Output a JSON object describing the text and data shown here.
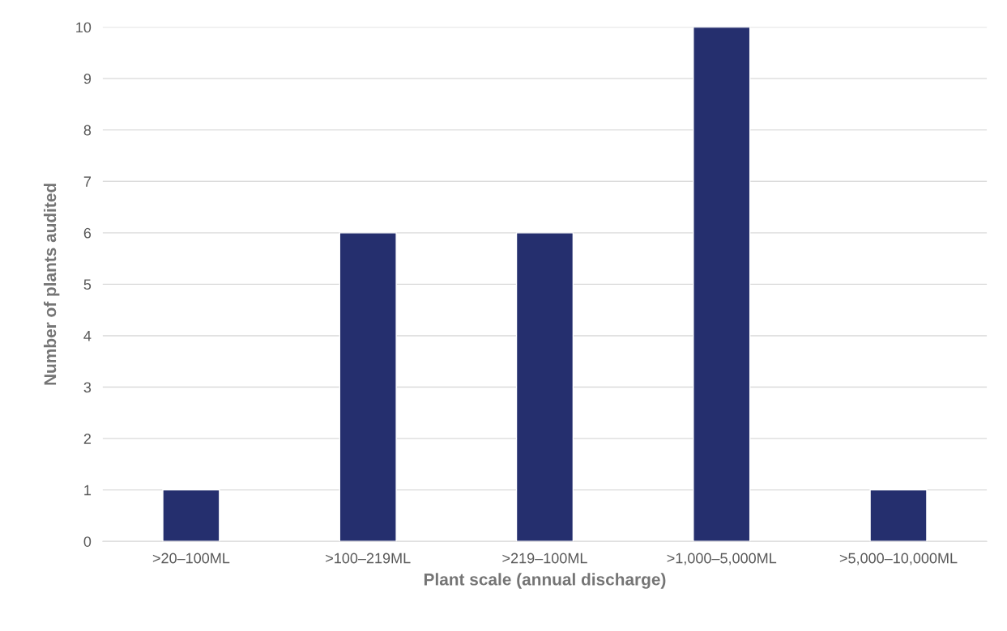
{
  "chart_data": {
    "type": "bar",
    "categories": [
      ">20–100ML",
      ">100–219ML",
      ">219–100ML",
      ">1,000–5,000ML",
      ">5,000–10,000ML"
    ],
    "values": [
      1,
      6,
      6,
      10,
      1
    ],
    "color": "#252f6e",
    "xlabel": "Plant scale (annual discharge)",
    "ylabel": "Number of plants audited",
    "ylim": [
      0,
      10
    ],
    "yticks": [
      0,
      1,
      2,
      3,
      4,
      5,
      6,
      7,
      8,
      9,
      10
    ],
    "grid": "y"
  }
}
